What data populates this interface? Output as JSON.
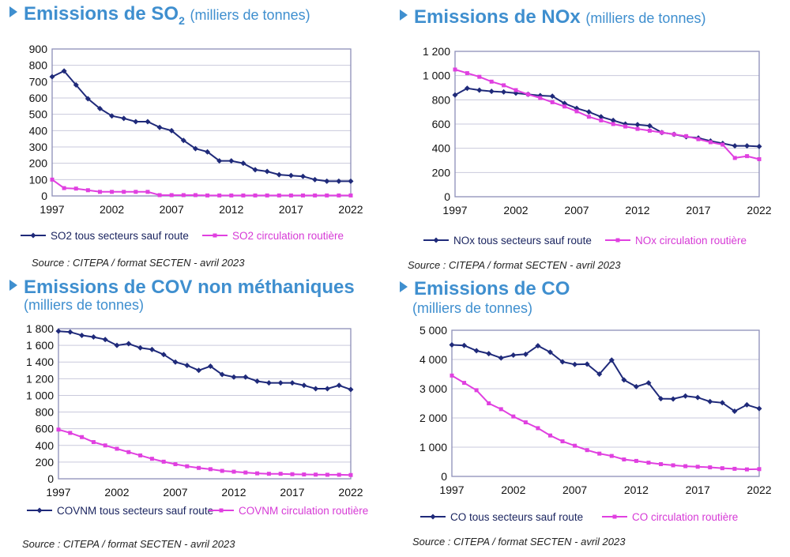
{
  "panels": [
    {
      "title_main": "Emissions de SO",
      "title_sub": "2",
      "unit": "(milliers de tonnes)",
      "source": "Source : CITEPA / format SECTEN - avril 2023"
    },
    {
      "title_main": "Emissions de NOx",
      "unit": "(milliers de tonnes)",
      "source": "Source : CITEPA / format SECTEN - avril 2023"
    },
    {
      "title_main": "Emissions de COV non méthaniques",
      "unit": "(milliers de tonnes)",
      "source": "Source : CITEPA  / format  SECTEN - avril 2023"
    },
    {
      "title_main": "Emissions de CO",
      "unit": "(milliers de tonnes)",
      "source": "Source : CITEPA  / format  SECTEN - avril 2023"
    }
  ],
  "colors": {
    "title": "#3f8fcf",
    "series1": "#1f2a7a",
    "series2": "#e040e0",
    "frame": "#8d8fb8",
    "grid": "#c9c9dc"
  },
  "chart_data": [
    {
      "type": "line",
      "title": "Emissions de SO2 (milliers de tonnes)",
      "x": [
        1997,
        1998,
        1999,
        2000,
        2001,
        2002,
        2003,
        2004,
        2005,
        2006,
        2007,
        2008,
        2009,
        2010,
        2011,
        2012,
        2013,
        2014,
        2015,
        2016,
        2017,
        2018,
        2019,
        2020,
        2021,
        2022
      ],
      "x_ticks": [
        1997,
        2002,
        2007,
        2012,
        2017,
        2022
      ],
      "y_ticks": [
        0,
        100,
        200,
        300,
        400,
        500,
        600,
        700,
        800,
        900
      ],
      "y_tick_labels": [
        "0",
        "100",
        "200",
        "300",
        "400",
        "500",
        "600",
        "700",
        "800",
        "900"
      ],
      "ylim": [
        0,
        900
      ],
      "grid": true,
      "legend_position": "bottom",
      "series": [
        {
          "name": "SO2 tous secteurs sauf route",
          "values": [
            730,
            765,
            680,
            595,
            535,
            490,
            475,
            455,
            455,
            420,
            400,
            340,
            290,
            270,
            215,
            215,
            200,
            160,
            150,
            130,
            125,
            120,
            100,
            90,
            90,
            90
          ]
        },
        {
          "name": "SO2 circulation routière",
          "values": [
            100,
            48,
            45,
            35,
            25,
            25,
            25,
            25,
            25,
            5,
            5,
            5,
            5,
            3,
            3,
            3,
            3,
            3,
            3,
            3,
            3,
            3,
            3,
            3,
            3,
            3
          ]
        }
      ]
    },
    {
      "type": "line",
      "title": "Emissions de NOx (milliers de tonnes)",
      "x": [
        1997,
        1998,
        1999,
        2000,
        2001,
        2002,
        2003,
        2004,
        2005,
        2006,
        2007,
        2008,
        2009,
        2010,
        2011,
        2012,
        2013,
        2014,
        2015,
        2016,
        2017,
        2018,
        2019,
        2020,
        2021,
        2022
      ],
      "x_ticks": [
        1997,
        2002,
        2007,
        2012,
        2017,
        2022
      ],
      "y_ticks": [
        0,
        200,
        400,
        600,
        800,
        1000,
        1200
      ],
      "y_tick_labels": [
        "0",
        "200",
        "400",
        "600",
        "800",
        "1 000",
        "1 200"
      ],
      "ylim": [
        0,
        1200
      ],
      "grid": true,
      "legend_position": "bottom",
      "series": [
        {
          "name": "NOx tous secteurs sauf route",
          "values": [
            840,
            895,
            880,
            870,
            865,
            855,
            845,
            835,
            830,
            770,
            730,
            700,
            660,
            630,
            600,
            595,
            585,
            530,
            515,
            495,
            485,
            460,
            440,
            420,
            420,
            415
          ]
        },
        {
          "name": "NOx circulation routière",
          "values": [
            1050,
            1020,
            990,
            950,
            920,
            880,
            845,
            815,
            780,
            745,
            705,
            660,
            630,
            600,
            580,
            560,
            545,
            530,
            515,
            500,
            475,
            450,
            430,
            320,
            335,
            310
          ]
        }
      ]
    },
    {
      "type": "line",
      "title": "Emissions de COV non méthaniques (milliers de tonnes)",
      "x": [
        1997,
        1998,
        1999,
        2000,
        2001,
        2002,
        2003,
        2004,
        2005,
        2006,
        2007,
        2008,
        2009,
        2010,
        2011,
        2012,
        2013,
        2014,
        2015,
        2016,
        2017,
        2018,
        2019,
        2020,
        2021,
        2022
      ],
      "x_ticks": [
        1997,
        2002,
        2007,
        2012,
        2017,
        2022
      ],
      "y_ticks": [
        0,
        200,
        400,
        600,
        800,
        1000,
        1200,
        1400,
        1600,
        1800
      ],
      "y_tick_labels": [
        "0",
        "200",
        "400",
        "600",
        "800",
        "1 000",
        "1 200",
        "1 400",
        "1 600",
        "1 800"
      ],
      "ylim": [
        0,
        1800
      ],
      "grid": true,
      "legend_position": "bottom",
      "series": [
        {
          "name": "COVNM tous secteurs sauf route",
          "values": [
            1770,
            1760,
            1720,
            1700,
            1670,
            1600,
            1620,
            1570,
            1550,
            1490,
            1400,
            1360,
            1300,
            1350,
            1250,
            1220,
            1220,
            1170,
            1150,
            1150,
            1150,
            1120,
            1080,
            1080,
            1120,
            1070
          ]
        },
        {
          "name": "COVNM circulation routière",
          "values": [
            590,
            550,
            500,
            440,
            400,
            360,
            320,
            280,
            240,
            205,
            175,
            150,
            130,
            115,
            95,
            85,
            75,
            65,
            60,
            60,
            55,
            52,
            50,
            48,
            48,
            45
          ]
        }
      ]
    },
    {
      "type": "line",
      "title": "Emissions de CO (milliers de tonnes)",
      "x": [
        1997,
        1998,
        1999,
        2000,
        2001,
        2002,
        2003,
        2004,
        2005,
        2006,
        2007,
        2008,
        2009,
        2010,
        2011,
        2012,
        2013,
        2014,
        2015,
        2016,
        2017,
        2018,
        2019,
        2020,
        2021,
        2022
      ],
      "x_ticks": [
        1997,
        2002,
        2007,
        2012,
        2017,
        2022
      ],
      "y_ticks": [
        0,
        1000,
        2000,
        3000,
        4000,
        5000
      ],
      "y_tick_labels": [
        "0",
        "1 000",
        "2 000",
        "3 000",
        "4 000",
        "5 000"
      ],
      "ylim": [
        0,
        5000
      ],
      "grid": true,
      "legend_position": "bottom",
      "series": [
        {
          "name": "CO tous secteurs sauf route",
          "values": [
            4500,
            4480,
            4300,
            4200,
            4050,
            4150,
            4180,
            4470,
            4250,
            3920,
            3830,
            3840,
            3500,
            3980,
            3300,
            3070,
            3200,
            2660,
            2650,
            2750,
            2700,
            2560,
            2520,
            2230,
            2450,
            2320
          ]
        },
        {
          "name": "CO circulation routière",
          "values": [
            3450,
            3200,
            2950,
            2500,
            2300,
            2050,
            1850,
            1650,
            1400,
            1200,
            1050,
            900,
            780,
            700,
            580,
            530,
            470,
            420,
            380,
            350,
            330,
            310,
            280,
            260,
            240,
            250
          ]
        }
      ]
    }
  ]
}
